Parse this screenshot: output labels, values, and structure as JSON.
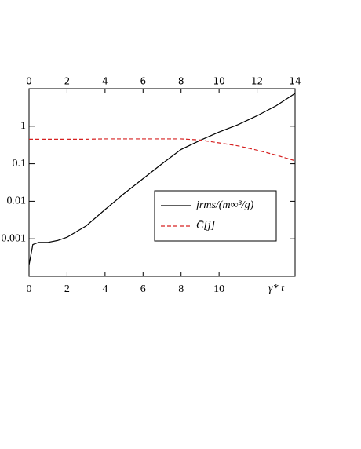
{
  "chart_data": {
    "type": "line",
    "log_y": true,
    "x": [
      0,
      0.2,
      0.5,
      1,
      1.5,
      2,
      3,
      4,
      5,
      6,
      7,
      8,
      9,
      10,
      11,
      12,
      13,
      14
    ],
    "series": [
      {
        "name": "jrms/(m∞³/g)",
        "color": "#000000",
        "dash": false,
        "values": [
          0.0002,
          0.0007,
          0.0008,
          0.0008,
          0.0009,
          0.0011,
          0.0022,
          0.006,
          0.016,
          0.04,
          0.1,
          0.24,
          0.42,
          0.7,
          1.1,
          1.9,
          3.5,
          7.5
        ]
      },
      {
        "name": "C̄[j]",
        "color": "#d62020",
        "dash": true,
        "values": [
          0.45,
          0.45,
          0.45,
          0.45,
          0.45,
          0.45,
          0.45,
          0.46,
          0.46,
          0.46,
          0.46,
          0.46,
          0.43,
          0.36,
          0.3,
          0.23,
          0.17,
          0.12
        ]
      }
    ],
    "xlim": [
      0,
      14
    ],
    "xticks": [
      0,
      2,
      4,
      6,
      8,
      10,
      12,
      14
    ],
    "xticks_bottom": [
      0,
      2,
      4,
      6,
      8,
      10
    ],
    "xlabel": "γ* t",
    "ylim": [
      0.0001,
      10
    ],
    "yticks": [
      0.001,
      0.01,
      0.1,
      1
    ]
  }
}
